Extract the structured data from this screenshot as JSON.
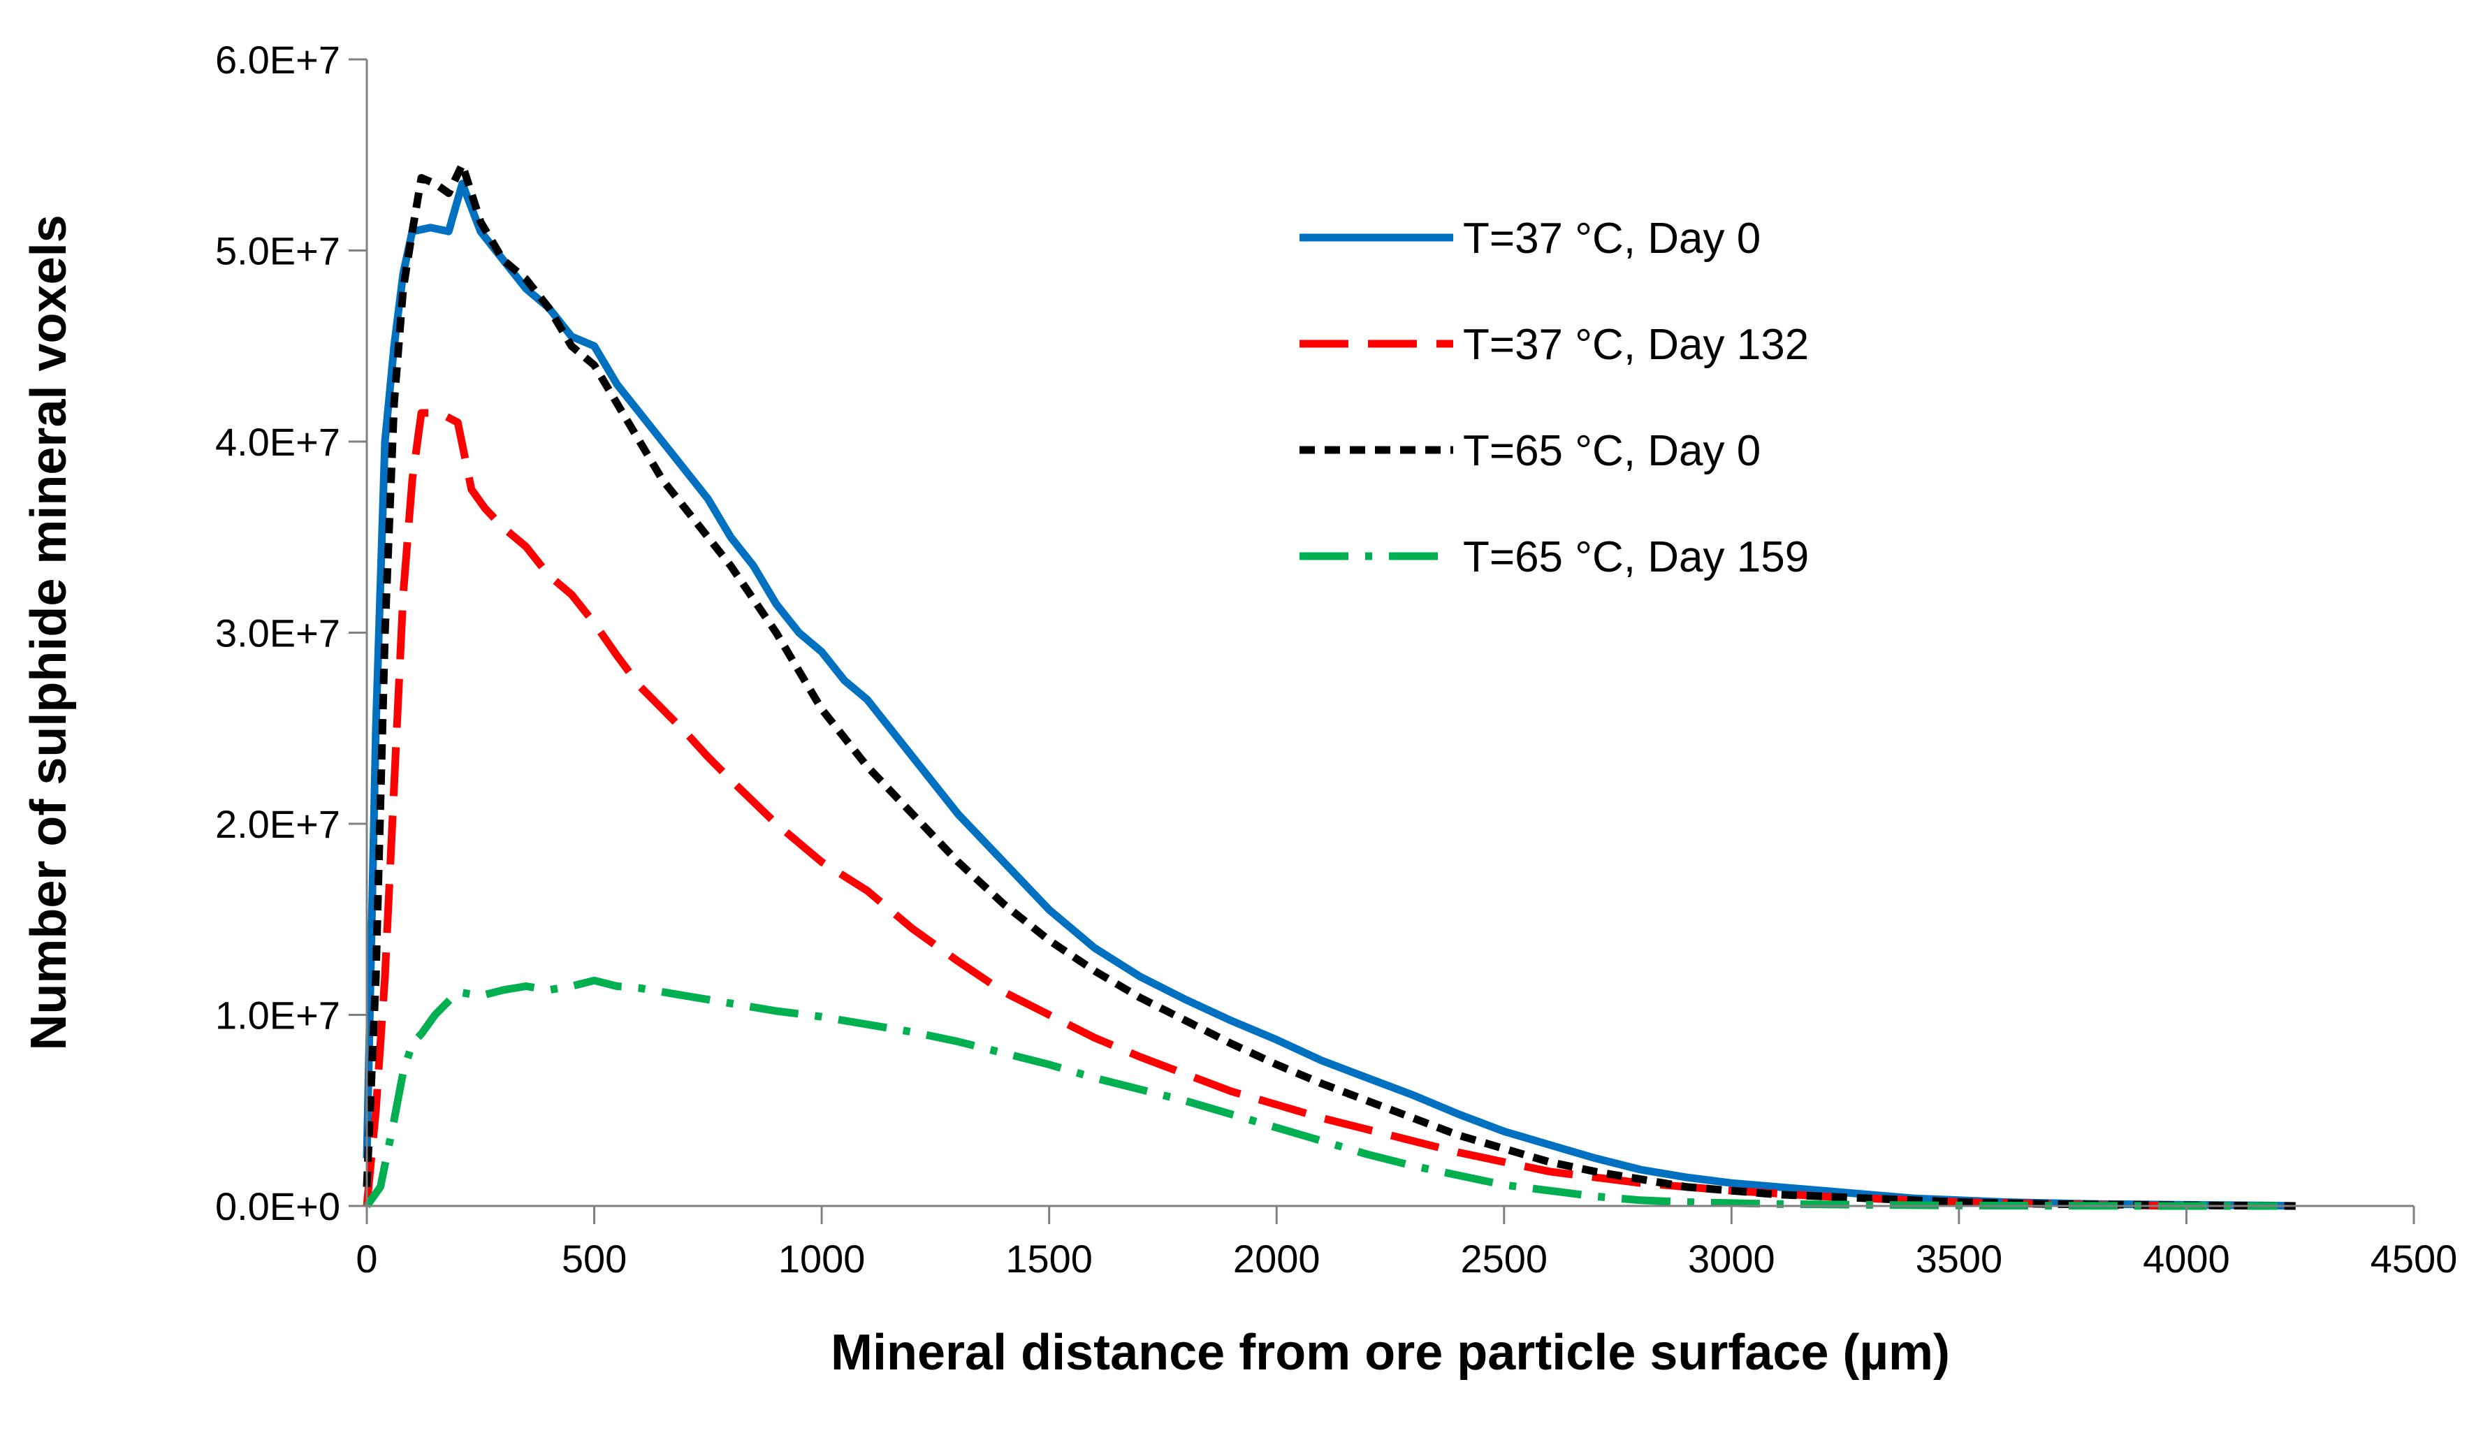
{
  "chart_data": {
    "type": "line",
    "title": "",
    "xlabel": "Mineral distance from ore particle surface (µm)",
    "ylabel": "Number of sulphide mineral voxels",
    "xlim": [
      0,
      4500
    ],
    "ylim": [
      0,
      60000000
    ],
    "xticks": [
      0,
      500,
      1000,
      1500,
      2000,
      2500,
      3000,
      3500,
      4000,
      4500
    ],
    "xtick_labels": [
      "0",
      "500",
      "1000",
      "1500",
      "2000",
      "2500",
      "3000",
      "3500",
      "4000",
      "4500"
    ],
    "yticks": [
      0,
      10000000,
      20000000,
      30000000,
      40000000,
      50000000,
      60000000
    ],
    "ytick_labels": [
      "0.0E+0",
      "1.0E+7",
      "2.0E+7",
      "3.0E+7",
      "4.0E+7",
      "5.0E+7",
      "6.0E+7"
    ],
    "grid": false,
    "legend_position": "top-right",
    "series": [
      {
        "name": "T=37 °C, Day 0",
        "color": "#0070C0",
        "style": "solid",
        "x": [
          0,
          20,
          40,
          60,
          80,
          100,
          140,
          180,
          210,
          250,
          300,
          350,
          400,
          450,
          500,
          550,
          600,
          650,
          700,
          750,
          800,
          850,
          900,
          950,
          1000,
          1050,
          1100,
          1200,
          1300,
          1400,
          1500,
          1600,
          1700,
          1800,
          1900,
          2000,
          2100,
          2200,
          2300,
          2400,
          2500,
          2600,
          2700,
          2800,
          2900,
          3000,
          3100,
          3200,
          3300,
          3400,
          3500,
          3600,
          3700,
          3800,
          3900,
          4000,
          4100,
          4200,
          4240
        ],
        "y": [
          2500000,
          25000000,
          40000000,
          45000000,
          48800000,
          51000000,
          51200000,
          51000000,
          53500000,
          51000000,
          49500000,
          48000000,
          47000000,
          45500000,
          45000000,
          43000000,
          41500000,
          40000000,
          38500000,
          37000000,
          35000000,
          33500000,
          31500000,
          30000000,
          29000000,
          27500000,
          26500000,
          23500000,
          20500000,
          18000000,
          15500000,
          13500000,
          12000000,
          10800000,
          9700000,
          8700000,
          7600000,
          6700000,
          5800000,
          4800000,
          3900000,
          3200000,
          2500000,
          1900000,
          1500000,
          1200000,
          1000000,
          800000,
          600000,
          400000,
          300000,
          200000,
          150000,
          100000,
          80000,
          60000,
          40000,
          20000,
          0
        ]
      },
      {
        "name": "T=37 °C, Day 132",
        "color": "#FF0000",
        "style": "long-dash",
        "x": [
          0,
          20,
          40,
          60,
          80,
          100,
          120,
          160,
          200,
          230,
          260,
          300,
          350,
          400,
          450,
          500,
          550,
          600,
          650,
          700,
          750,
          800,
          900,
          1000,
          1100,
          1200,
          1300,
          1400,
          1500,
          1600,
          1700,
          1800,
          1900,
          2000,
          2100,
          2200,
          2300,
          2400,
          2500,
          2600,
          2700,
          2800,
          2900,
          3000,
          3100,
          3200,
          3300,
          3400,
          3500,
          3600,
          3700,
          3800,
          3900,
          4000
        ],
        "y": [
          0,
          5000000,
          12000000,
          22000000,
          32000000,
          38000000,
          41500000,
          41500000,
          41000000,
          37500000,
          36500000,
          35500000,
          34500000,
          33000000,
          32000000,
          30500000,
          28800000,
          27200000,
          26000000,
          24800000,
          23500000,
          22300000,
          20000000,
          18000000,
          16500000,
          14500000,
          12800000,
          11200000,
          10000000,
          8800000,
          7800000,
          6900000,
          6000000,
          5300000,
          4600000,
          4000000,
          3400000,
          2800000,
          2300000,
          1800000,
          1500000,
          1200000,
          1000000,
          800000,
          650000,
          500000,
          400000,
          300000,
          200000,
          150000,
          100000,
          60000,
          30000,
          0
        ]
      },
      {
        "name": "T=65 °C, Day 0",
        "color": "#000000",
        "style": "short-dash",
        "x": [
          0,
          20,
          40,
          60,
          80,
          100,
          120,
          150,
          180,
          210,
          250,
          300,
          350,
          400,
          450,
          500,
          550,
          600,
          650,
          700,
          750,
          800,
          900,
          1000,
          1100,
          1200,
          1300,
          1400,
          1500,
          1600,
          1700,
          1800,
          1900,
          2000,
          2100,
          2200,
          2300,
          2400,
          2500,
          2600,
          2700,
          2800,
          2900,
          3000,
          3100,
          3200,
          3300,
          3400,
          3500,
          3600,
          3700,
          3800,
          3900,
          4000,
          4100,
          4240
        ],
        "y": [
          1000000,
          12000000,
          30000000,
          42000000,
          48000000,
          51000000,
          53800000,
          53500000,
          53000000,
          54500000,
          51500000,
          49500000,
          48500000,
          47000000,
          45000000,
          44000000,
          42000000,
          40000000,
          38000000,
          36500000,
          35000000,
          33500000,
          30000000,
          26000000,
          23000000,
          20500000,
          18000000,
          15800000,
          13900000,
          12300000,
          10900000,
          9700000,
          8500000,
          7400000,
          6400000,
          5500000,
          4600000,
          3700000,
          3000000,
          2300000,
          1800000,
          1400000,
          1000000,
          800000,
          600000,
          500000,
          400000,
          300000,
          200000,
          150000,
          100000,
          80000,
          60000,
          40000,
          20000,
          0
        ]
      },
      {
        "name": "T=65 °C, Day 159",
        "color": "#00B050",
        "style": "dash-dot",
        "x": [
          0,
          30,
          60,
          80,
          100,
          120,
          150,
          200,
          250,
          300,
          350,
          400,
          450,
          500,
          550,
          600,
          650,
          700,
          800,
          900,
          1000,
          1100,
          1200,
          1300,
          1400,
          1500,
          1600,
          1700,
          1800,
          1900,
          2000,
          2100,
          2200,
          2300,
          2400,
          2500,
          2600,
          2700,
          2800,
          2900,
          3000,
          3100,
          3200,
          3300,
          3400,
          3500,
          3600,
          3700,
          3800,
          3900,
          4000,
          4100,
          4200
        ],
        "y": [
          0,
          1000000,
          4500000,
          7000000,
          8500000,
          9000000,
          10000000,
          11200000,
          11000000,
          11300000,
          11500000,
          11300000,
          11500000,
          11800000,
          11500000,
          11400000,
          11200000,
          11000000,
          10600000,
          10200000,
          9900000,
          9500000,
          9100000,
          8600000,
          8000000,
          7400000,
          6700000,
          6100000,
          5500000,
          4800000,
          4100000,
          3400000,
          2700000,
          2100000,
          1600000,
          1100000,
          800000,
          500000,
          300000,
          200000,
          150000,
          100000,
          80000,
          60000,
          40000,
          30000,
          20000,
          15000,
          10000,
          5000,
          0,
          0,
          0
        ]
      }
    ]
  }
}
